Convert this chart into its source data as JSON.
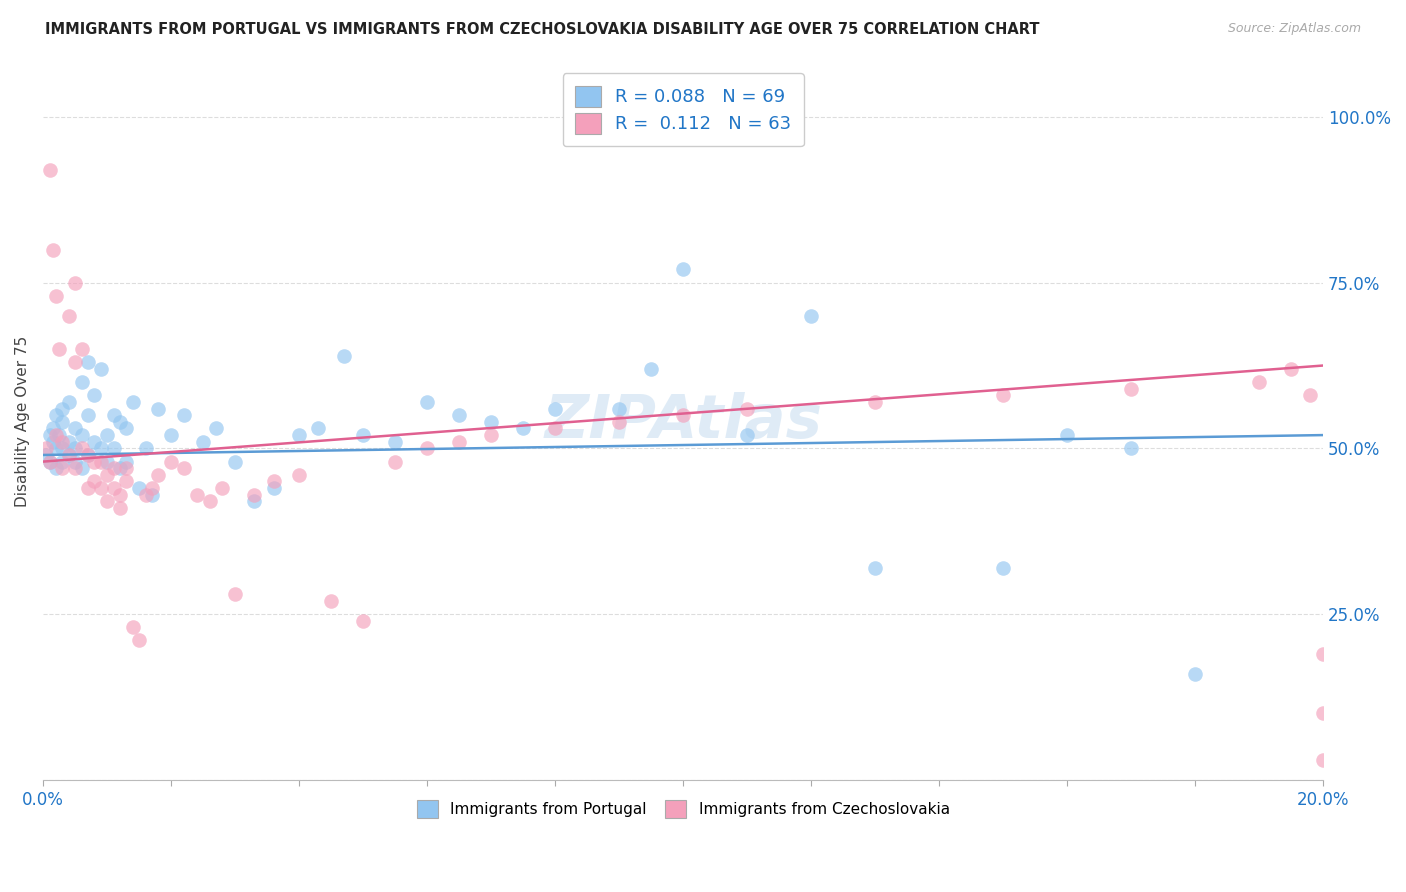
{
  "title": "IMMIGRANTS FROM PORTUGAL VS IMMIGRANTS FROM CZECHOSLOVAKIA DISABILITY AGE OVER 75 CORRELATION CHART",
  "source": "Source: ZipAtlas.com",
  "ylabel": "Disability Age Over 75",
  "xlim": [
    0.0,
    0.2
  ],
  "ylim": [
    0.0,
    1.08
  ],
  "blue_color": "#92C5F0",
  "pink_color": "#F4A0BB",
  "blue_line_color": "#5B9BD5",
  "pink_line_color": "#E06090",
  "R_blue": 0.088,
  "N_blue": 69,
  "R_pink": 0.112,
  "N_pink": 63,
  "watermark": "ZIPAtlas",
  "background_color": "#FFFFFF",
  "grid_color": "#DDDDDD",
  "blue_x": [
    0.0005,
    0.001,
    0.001,
    0.0015,
    0.0015,
    0.002,
    0.002,
    0.002,
    0.0025,
    0.003,
    0.003,
    0.003,
    0.003,
    0.004,
    0.004,
    0.004,
    0.005,
    0.005,
    0.005,
    0.006,
    0.006,
    0.006,
    0.007,
    0.007,
    0.007,
    0.008,
    0.008,
    0.009,
    0.009,
    0.01,
    0.01,
    0.011,
    0.011,
    0.012,
    0.012,
    0.013,
    0.013,
    0.014,
    0.015,
    0.016,
    0.017,
    0.018,
    0.02,
    0.022,
    0.025,
    0.027,
    0.03,
    0.033,
    0.036,
    0.04,
    0.043,
    0.047,
    0.05,
    0.055,
    0.06,
    0.065,
    0.07,
    0.075,
    0.08,
    0.09,
    0.095,
    0.1,
    0.11,
    0.12,
    0.13,
    0.15,
    0.16,
    0.17,
    0.18
  ],
  "blue_y": [
    0.49,
    0.52,
    0.48,
    0.51,
    0.53,
    0.5,
    0.55,
    0.47,
    0.52,
    0.5,
    0.48,
    0.54,
    0.56,
    0.51,
    0.49,
    0.57,
    0.5,
    0.53,
    0.48,
    0.52,
    0.6,
    0.47,
    0.55,
    0.49,
    0.63,
    0.51,
    0.58,
    0.5,
    0.62,
    0.52,
    0.48,
    0.55,
    0.5,
    0.54,
    0.47,
    0.53,
    0.48,
    0.57,
    0.44,
    0.5,
    0.43,
    0.56,
    0.52,
    0.55,
    0.51,
    0.53,
    0.48,
    0.42,
    0.44,
    0.52,
    0.53,
    0.64,
    0.52,
    0.51,
    0.57,
    0.55,
    0.54,
    0.53,
    0.56,
    0.56,
    0.62,
    0.77,
    0.52,
    0.7,
    0.32,
    0.32,
    0.52,
    0.5,
    0.16
  ],
  "pink_x": [
    0.0005,
    0.001,
    0.001,
    0.0015,
    0.002,
    0.002,
    0.0025,
    0.003,
    0.003,
    0.004,
    0.004,
    0.005,
    0.005,
    0.005,
    0.006,
    0.006,
    0.007,
    0.007,
    0.008,
    0.008,
    0.009,
    0.009,
    0.01,
    0.01,
    0.011,
    0.011,
    0.012,
    0.012,
    0.013,
    0.013,
    0.014,
    0.015,
    0.016,
    0.017,
    0.018,
    0.02,
    0.022,
    0.024,
    0.026,
    0.028,
    0.03,
    0.033,
    0.036,
    0.04,
    0.045,
    0.05,
    0.055,
    0.06,
    0.065,
    0.07,
    0.08,
    0.09,
    0.1,
    0.11,
    0.13,
    0.15,
    0.17,
    0.19,
    0.195,
    0.198,
    0.2,
    0.2,
    0.2
  ],
  "pink_y": [
    0.5,
    0.92,
    0.48,
    0.8,
    0.52,
    0.73,
    0.65,
    0.51,
    0.47,
    0.7,
    0.49,
    0.63,
    0.47,
    0.75,
    0.5,
    0.65,
    0.49,
    0.44,
    0.48,
    0.45,
    0.44,
    0.48,
    0.46,
    0.42,
    0.47,
    0.44,
    0.43,
    0.41,
    0.45,
    0.47,
    0.23,
    0.21,
    0.43,
    0.44,
    0.46,
    0.48,
    0.47,
    0.43,
    0.42,
    0.44,
    0.28,
    0.43,
    0.45,
    0.46,
    0.27,
    0.24,
    0.48,
    0.5,
    0.51,
    0.52,
    0.53,
    0.54,
    0.55,
    0.56,
    0.57,
    0.58,
    0.59,
    0.6,
    0.62,
    0.58,
    0.03,
    0.19,
    0.1
  ]
}
